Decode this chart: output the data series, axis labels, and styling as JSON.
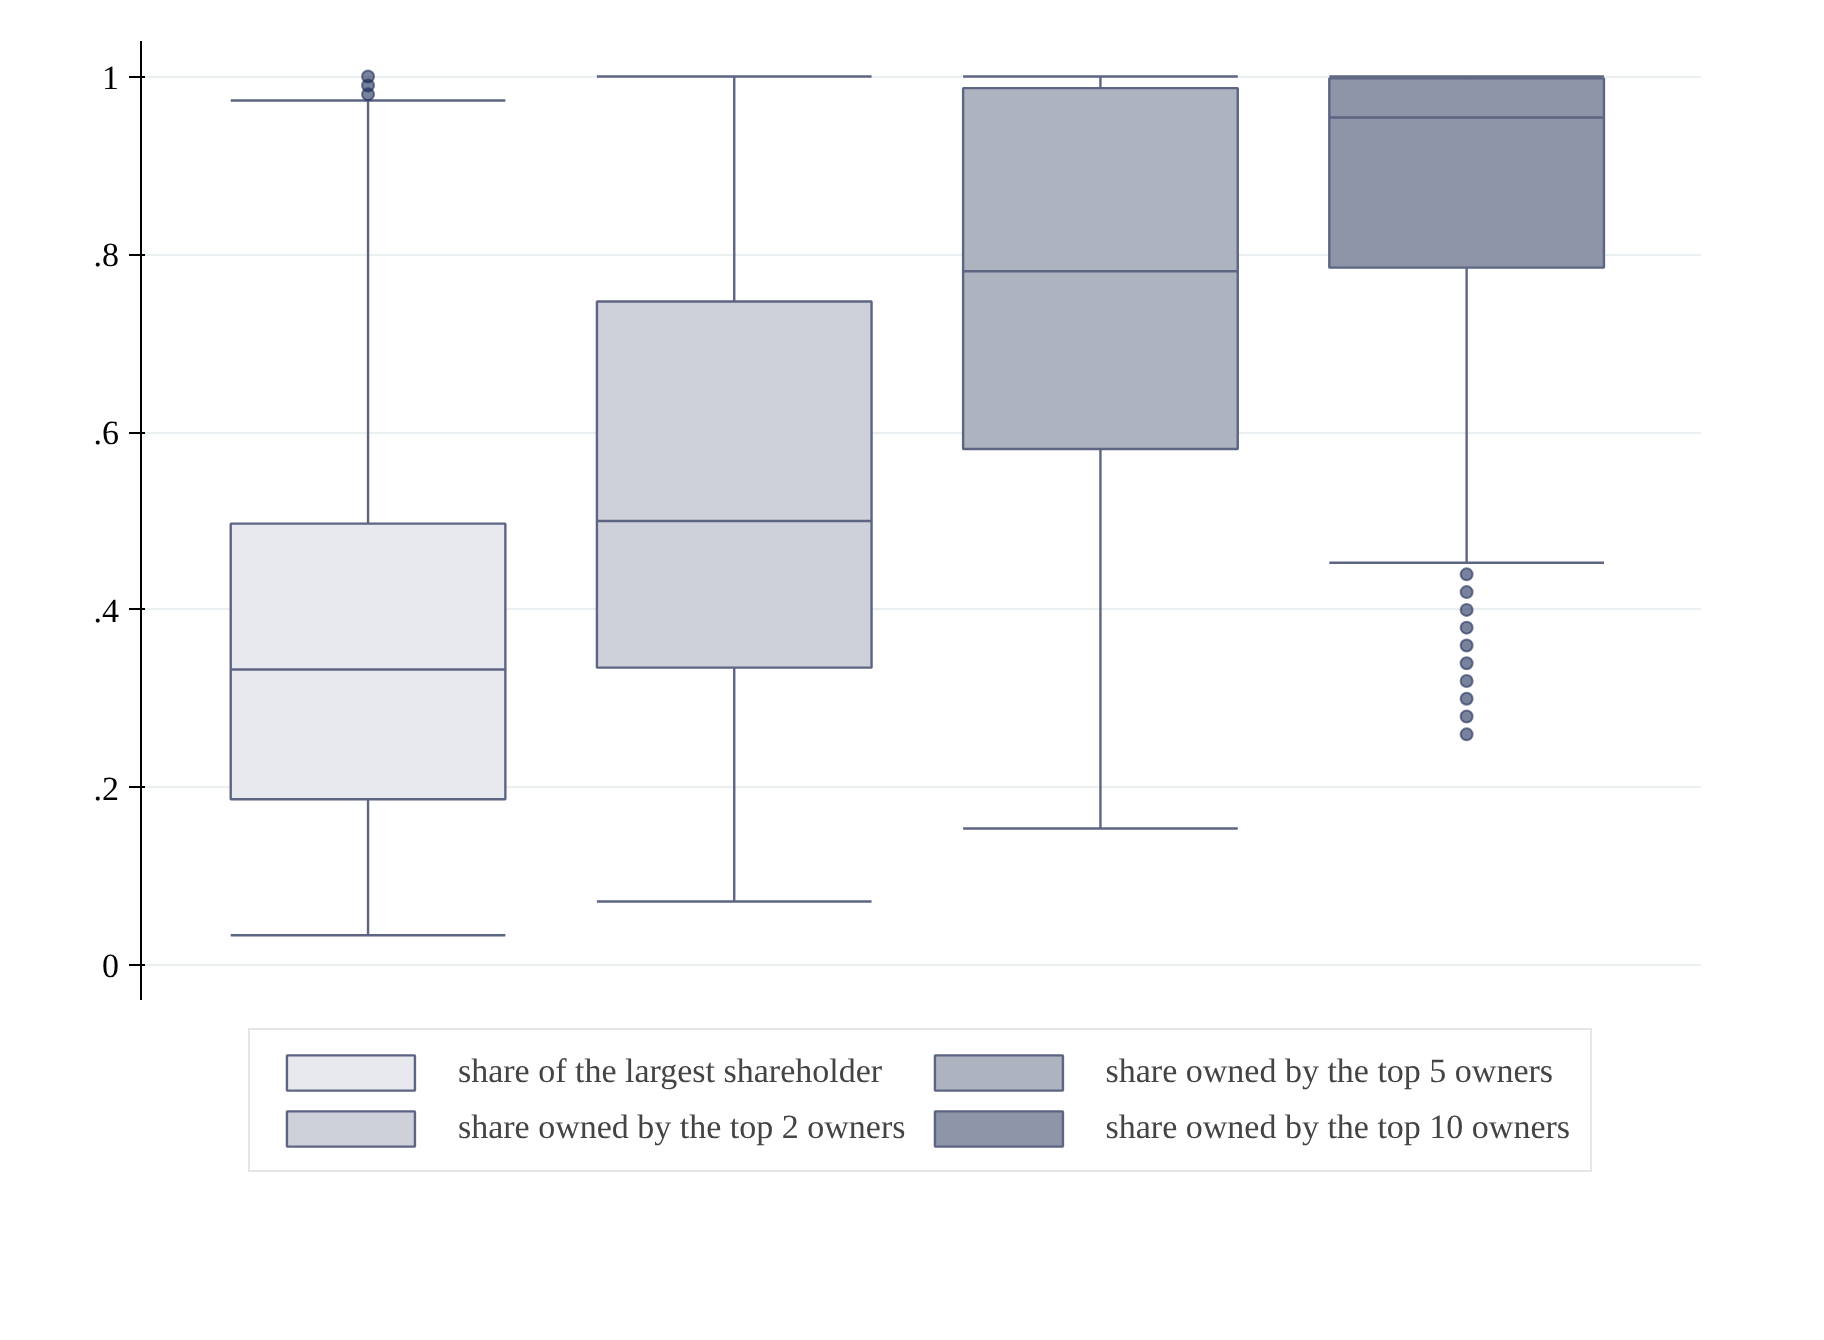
{
  "chart_data": {
    "type": "box",
    "categories": [
      null
    ],
    "series": [
      {
        "name": "share of the largest shareholder",
        "color": "#e8e9ee",
        "boxes": [
          {
            "low": 0.034,
            "q1": 0.187,
            "median": 0.333,
            "q3": 0.497,
            "high": 0.973,
            "outliers": [
              0.98,
              0.99,
              1.0
            ]
          }
        ]
      },
      {
        "name": "share owned by the top 2 owners",
        "color": "#ced0da",
        "boxes": [
          {
            "low": 0.072,
            "q1": 0.335,
            "median": 0.5,
            "q3": 0.747,
            "high": 1.0
          }
        ]
      },
      {
        "name": "share owned by the top 5 owners",
        "color": "#aeb3c0",
        "boxes": [
          {
            "low": 0.154,
            "q1": 0.581,
            "median": 0.781,
            "q3": 0.987,
            "high": 1.0
          }
        ]
      },
      {
        "name": "share owned by the top 10 owners",
        "color": "#8e95a8",
        "boxes": [
          {
            "low": 0.453,
            "q1": 0.785,
            "median": 0.954,
            "q3": 0.998,
            "high": 1.0,
            "outliers": [
              0.44,
              0.42,
              0.4,
              0.38,
              0.36,
              0.34,
              0.32,
              0.3,
              0.28,
              0.26
            ]
          }
        ]
      }
    ],
    "ylim": [
      -0.04,
      1.04
    ],
    "yticks": [
      0,
      {
        "value": 0.2,
        "label": ".2"
      },
      {
        "value": 0.4,
        "label": ".4"
      },
      {
        "value": 0.6,
        "label": ".6"
      },
      {
        "value": 0.8,
        "label": ".8"
      },
      1
    ],
    "grid": "y",
    "legend": "bottom"
  }
}
